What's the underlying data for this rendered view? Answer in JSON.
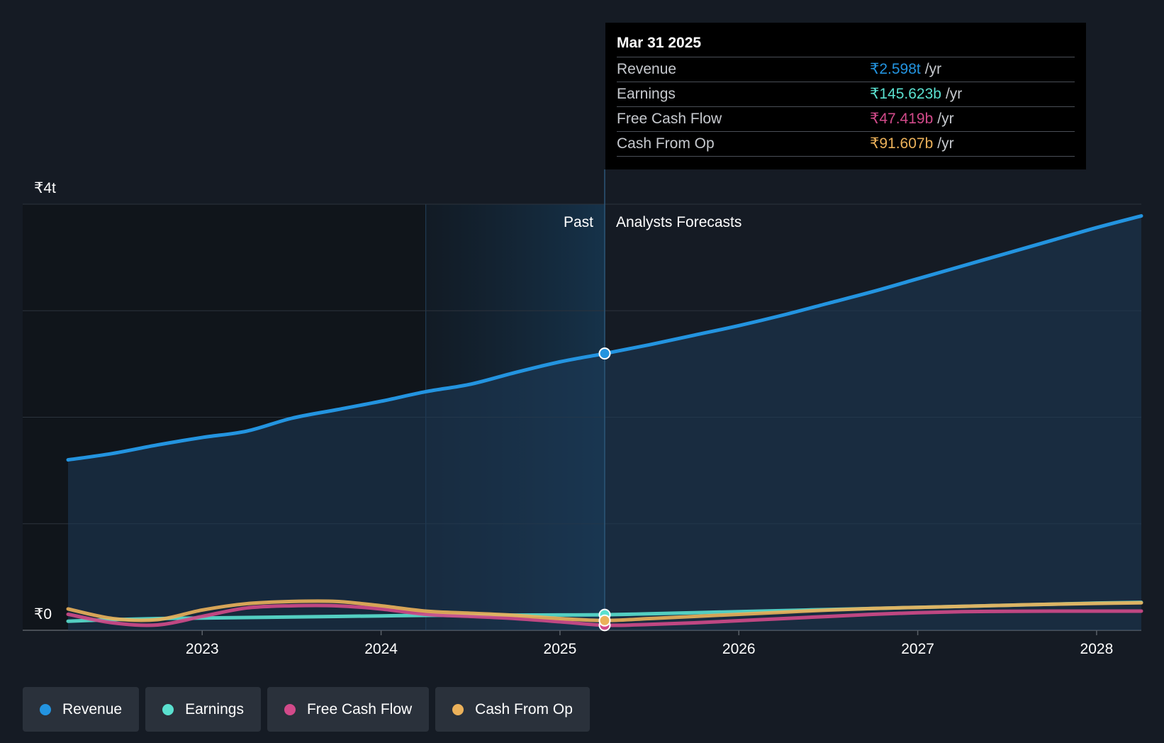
{
  "colors": {
    "revenue": "#2394e0",
    "earnings": "#5ae0cf",
    "free_cash_flow": "#d24a8a",
    "cash_from_op": "#ebb15a",
    "background": "#151b24"
  },
  "chart_data": {
    "type": "line",
    "y_unit": "₹",
    "ylim": [
      0,
      4000
    ],
    "y_tick_labels": [
      "₹0",
      "₹4t"
    ],
    "x_tick_labels": [
      "2023",
      "2024",
      "2025",
      "2026",
      "2027",
      "2028"
    ],
    "divider_date": "Mar 31 2025",
    "past_label": "Past",
    "forecast_label": "Analysts Forecasts",
    "grid": true,
    "x_range": [
      2022.25,
      2028.25
    ],
    "series": [
      {
        "name": "Revenue",
        "key": "revenue",
        "x": [
          2022.25,
          2022.5,
          2022.75,
          2023.0,
          2023.25,
          2023.5,
          2023.75,
          2024.0,
          2024.25,
          2024.5,
          2024.75,
          2025.0,
          2025.25,
          2025.5,
          2025.75,
          2026.0,
          2026.25,
          2026.5,
          2026.75,
          2027.0,
          2027.25,
          2027.5,
          2027.75,
          2028.0,
          2028.25
        ],
        "values": [
          1600,
          1660,
          1740,
          1810,
          1870,
          1990,
          2070,
          2150,
          2240,
          2310,
          2420,
          2520,
          2598,
          2680,
          2770,
          2860,
          2960,
          3070,
          3180,
          3300,
          3420,
          3540,
          3660,
          3780,
          3890
        ]
      },
      {
        "name": "Earnings",
        "key": "earnings",
        "x": [
          2022.25,
          2022.5,
          2022.75,
          2023.0,
          2023.25,
          2023.5,
          2023.75,
          2024.0,
          2024.25,
          2024.5,
          2024.75,
          2025.0,
          2025.25,
          2025.5,
          2025.75,
          2026.0,
          2026.25,
          2026.5,
          2026.75,
          2027.0,
          2027.25,
          2027.5,
          2027.75,
          2028.0,
          2028.25
        ],
        "values": [
          85,
          100,
          110,
          115,
          120,
          125,
          130,
          135,
          140,
          140,
          142,
          144,
          145.6,
          155,
          165,
          175,
          185,
          195,
          205,
          215,
          225,
          235,
          245,
          255,
          262
        ]
      },
      {
        "name": "Free Cash Flow",
        "key": "free_cash_flow",
        "x": [
          2022.25,
          2022.5,
          2022.75,
          2023.0,
          2023.25,
          2023.5,
          2023.75,
          2024.0,
          2024.25,
          2024.5,
          2024.75,
          2025.0,
          2025.25,
          2025.5,
          2025.75,
          2026.0,
          2026.25,
          2026.5,
          2026.75,
          2027.0,
          2027.25,
          2027.5,
          2027.75,
          2028.0,
          2028.25
        ],
        "values": [
          150,
          70,
          50,
          130,
          210,
          230,
          230,
          200,
          150,
          130,
          110,
          80,
          47.4,
          55,
          70,
          90,
          110,
          130,
          150,
          165,
          175,
          178,
          180,
          180,
          180
        ]
      },
      {
        "name": "Cash From Op",
        "key": "cash_from_op",
        "x": [
          2022.25,
          2022.5,
          2022.75,
          2023.0,
          2023.25,
          2023.5,
          2023.75,
          2024.0,
          2024.25,
          2024.5,
          2024.75,
          2025.0,
          2025.25,
          2025.5,
          2025.75,
          2026.0,
          2026.25,
          2026.5,
          2026.75,
          2027.0,
          2027.25,
          2027.5,
          2027.75,
          2028.0,
          2028.25
        ],
        "values": [
          200,
          110,
          100,
          190,
          250,
          270,
          270,
          230,
          180,
          160,
          140,
          110,
          91.6,
          110,
          130,
          150,
          170,
          190,
          205,
          215,
          225,
          235,
          245,
          252,
          258
        ]
      }
    ]
  },
  "tooltip": {
    "date": "Mar 31 2025",
    "rows": [
      {
        "label": "Revenue",
        "value": "₹2.598t",
        "unit": "/yr",
        "key": "revenue"
      },
      {
        "label": "Earnings",
        "value": "₹145.623b",
        "unit": "/yr",
        "key": "earnings"
      },
      {
        "label": "Free Cash Flow",
        "value": "₹47.419b",
        "unit": "/yr",
        "key": "free_cash_flow"
      },
      {
        "label": "Cash From Op",
        "value": "₹91.607b",
        "unit": "/yr",
        "key": "cash_from_op"
      }
    ]
  },
  "legend": [
    {
      "label": "Revenue",
      "key": "revenue"
    },
    {
      "label": "Earnings",
      "key": "earnings"
    },
    {
      "label": "Free Cash Flow",
      "key": "free_cash_flow"
    },
    {
      "label": "Cash From Op",
      "key": "cash_from_op"
    }
  ]
}
